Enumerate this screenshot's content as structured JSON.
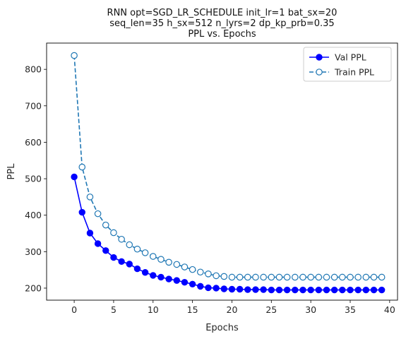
{
  "chart_data": {
    "type": "line",
    "title_lines": [
      "RNN opt=SGD_LR_SCHEDULE init_lr=1 bat_sx=20",
      "seq_len=35 h_sx=512 n_lyrs=2 dp_kp_prb=0.35",
      "PPL vs. Epochs"
    ],
    "xlabel": "Epochs",
    "ylabel": "PPL",
    "xlim": [
      -3.5,
      41
    ],
    "ylim": [
      167,
      872
    ],
    "xticks": [
      0,
      5,
      10,
      15,
      20,
      25,
      30,
      35,
      40
    ],
    "yticks": [
      200,
      300,
      400,
      500,
      600,
      700,
      800
    ],
    "legend_position": "top-right",
    "grid": false,
    "x": [
      0,
      1,
      2,
      3,
      4,
      5,
      6,
      7,
      8,
      9,
      10,
      11,
      12,
      13,
      14,
      15,
      16,
      17,
      18,
      19,
      20,
      21,
      22,
      23,
      24,
      25,
      26,
      27,
      28,
      29,
      30,
      31,
      32,
      33,
      34,
      35,
      36,
      37,
      38,
      39
    ],
    "series": [
      {
        "name": "Val PPL",
        "color": "#0000ff",
        "style": "solid",
        "marker": "filled-circle",
        "values": [
          505,
          408,
          351,
          322,
          303,
          284,
          273,
          266,
          253,
          243,
          235,
          230,
          225,
          221,
          216,
          211,
          205,
          201,
          200,
          198,
          197,
          197,
          196,
          196,
          196,
          195,
          195,
          195,
          195,
          195,
          195,
          195,
          195,
          195,
          195,
          195,
          195,
          195,
          195,
          195
        ]
      },
      {
        "name": "Train PPL",
        "color": "#1f77b4",
        "style": "dashed",
        "marker": "hollow-circle",
        "values": [
          838,
          532,
          450,
          404,
          373,
          352,
          334,
          319,
          307,
          297,
          287,
          279,
          271,
          265,
          258,
          251,
          244,
          239,
          234,
          232,
          230,
          230,
          230,
          230,
          230,
          230,
          230,
          230,
          230,
          230,
          230,
          230,
          230,
          230,
          230,
          230,
          230,
          230,
          230,
          230
        ]
      }
    ]
  }
}
